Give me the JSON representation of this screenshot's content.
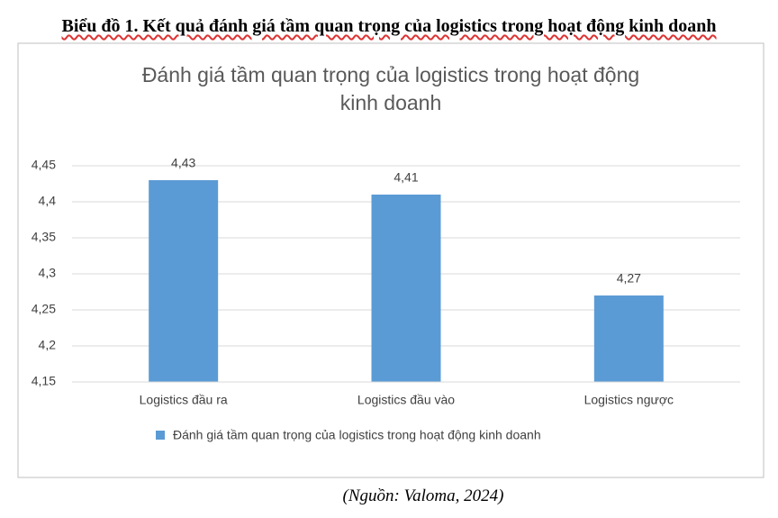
{
  "caption": "Biểu đồ 1. Kết quả đánh giá tầm quan trọng của logistics trong hoạt động kinh doanh",
  "source": "(Nguồn: Valoma, 2024)",
  "chart_data": {
    "type": "bar",
    "title": "Đánh giá tầm quan trọng của logistics trong hoạt động kinh doanh",
    "categories": [
      "Logistics đầu ra",
      "Logistics đầu vào",
      "Logistics ngược"
    ],
    "series": [
      {
        "name": "Đánh giá tầm quan trọng của logistics trong hoạt động kinh doanh",
        "color": "#5b9bd5",
        "values": [
          4.43,
          4.41,
          4.27
        ],
        "value_labels": [
          "4,43",
          "4,41",
          "4,27"
        ]
      }
    ],
    "ylim": [
      4.15,
      4.45
    ],
    "yticks": [
      {
        "value": 4.15,
        "label": "4,15"
      },
      {
        "value": 4.2,
        "label": "4,2"
      },
      {
        "value": 4.25,
        "label": "4,25"
      },
      {
        "value": 4.3,
        "label": "4,3"
      },
      {
        "value": 4.35,
        "label": "4,35"
      },
      {
        "value": 4.4,
        "label": "4,4"
      },
      {
        "value": 4.45,
        "label": "4,45"
      }
    ],
    "grid": true,
    "legend": "bottom"
  }
}
